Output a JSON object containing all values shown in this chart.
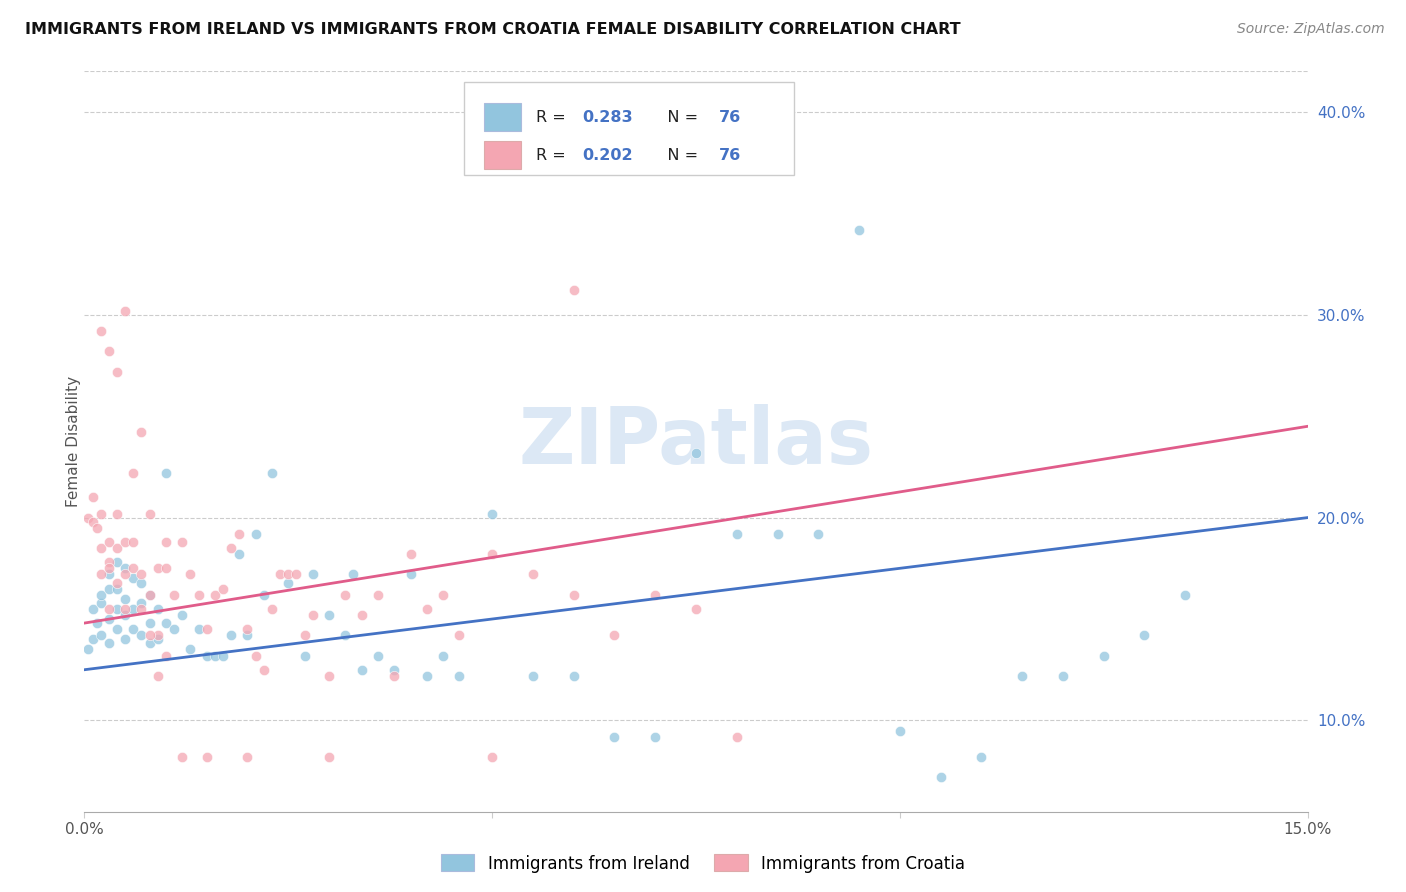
{
  "title": "IMMIGRANTS FROM IRELAND VS IMMIGRANTS FROM CROATIA FEMALE DISABILITY CORRELATION CHART",
  "source": "Source: ZipAtlas.com",
  "ylabel": "Female Disability",
  "xlim": [
    0.0,
    0.15
  ],
  "ylim": [
    0.055,
    0.42
  ],
  "y_ticks_right": [
    0.1,
    0.2,
    0.3,
    0.4
  ],
  "y_tick_labels_right": [
    "10.0%",
    "20.0%",
    "30.0%",
    "40.0%"
  ],
  "ireland_color": "#92c5de",
  "croatia_color": "#f4a6b2",
  "ireland_line_color": "#4472c4",
  "croatia_line_color": "#e05c8a",
  "ireland_R": 0.283,
  "ireland_N": 76,
  "croatia_R": 0.202,
  "croatia_N": 76,
  "legend_ireland_label": "Immigrants from Ireland",
  "legend_croatia_label": "Immigrants from Croatia",
  "ireland_scatter_x": [
    0.0005,
    0.001,
    0.001,
    0.0015,
    0.002,
    0.002,
    0.002,
    0.003,
    0.003,
    0.003,
    0.003,
    0.004,
    0.004,
    0.004,
    0.004,
    0.005,
    0.005,
    0.005,
    0.005,
    0.006,
    0.006,
    0.006,
    0.007,
    0.007,
    0.007,
    0.008,
    0.008,
    0.008,
    0.009,
    0.009,
    0.01,
    0.01,
    0.011,
    0.012,
    0.013,
    0.014,
    0.015,
    0.016,
    0.017,
    0.018,
    0.019,
    0.02,
    0.021,
    0.022,
    0.023,
    0.025,
    0.027,
    0.028,
    0.03,
    0.032,
    0.033,
    0.034,
    0.036,
    0.038,
    0.04,
    0.042,
    0.044,
    0.046,
    0.05,
    0.055,
    0.06,
    0.065,
    0.07,
    0.075,
    0.08,
    0.085,
    0.09,
    0.095,
    0.1,
    0.105,
    0.11,
    0.115,
    0.12,
    0.125,
    0.13,
    0.135
  ],
  "ireland_scatter_y": [
    0.135,
    0.14,
    0.155,
    0.148,
    0.142,
    0.158,
    0.162,
    0.138,
    0.15,
    0.165,
    0.172,
    0.145,
    0.155,
    0.165,
    0.178,
    0.14,
    0.152,
    0.16,
    0.175,
    0.145,
    0.155,
    0.17,
    0.142,
    0.158,
    0.168,
    0.138,
    0.148,
    0.162,
    0.14,
    0.155,
    0.148,
    0.222,
    0.145,
    0.152,
    0.135,
    0.145,
    0.132,
    0.132,
    0.132,
    0.142,
    0.182,
    0.142,
    0.192,
    0.162,
    0.222,
    0.168,
    0.132,
    0.172,
    0.152,
    0.142,
    0.172,
    0.125,
    0.132,
    0.125,
    0.172,
    0.122,
    0.132,
    0.122,
    0.202,
    0.122,
    0.122,
    0.092,
    0.092,
    0.232,
    0.192,
    0.192,
    0.192,
    0.342,
    0.095,
    0.072,
    0.082,
    0.122,
    0.122,
    0.132,
    0.142,
    0.162
  ],
  "croatia_scatter_x": [
    0.0005,
    0.001,
    0.001,
    0.0015,
    0.002,
    0.002,
    0.002,
    0.003,
    0.003,
    0.003,
    0.003,
    0.004,
    0.004,
    0.004,
    0.005,
    0.005,
    0.005,
    0.006,
    0.006,
    0.007,
    0.007,
    0.008,
    0.008,
    0.009,
    0.009,
    0.01,
    0.01,
    0.011,
    0.012,
    0.013,
    0.014,
    0.015,
    0.016,
    0.017,
    0.018,
    0.019,
    0.02,
    0.021,
    0.022,
    0.023,
    0.024,
    0.025,
    0.026,
    0.027,
    0.028,
    0.03,
    0.032,
    0.034,
    0.036,
    0.038,
    0.04,
    0.042,
    0.044,
    0.046,
    0.05,
    0.055,
    0.06,
    0.065,
    0.07,
    0.075,
    0.08,
    0.002,
    0.003,
    0.004,
    0.005,
    0.006,
    0.007,
    0.008,
    0.009,
    0.01,
    0.012,
    0.015,
    0.02,
    0.03,
    0.05,
    0.06
  ],
  "croatia_scatter_y": [
    0.2,
    0.198,
    0.21,
    0.195,
    0.202,
    0.185,
    0.172,
    0.178,
    0.188,
    0.155,
    0.175,
    0.168,
    0.185,
    0.202,
    0.172,
    0.188,
    0.155,
    0.175,
    0.188,
    0.172,
    0.155,
    0.162,
    0.202,
    0.175,
    0.142,
    0.175,
    0.188,
    0.162,
    0.188,
    0.172,
    0.162,
    0.145,
    0.162,
    0.165,
    0.185,
    0.192,
    0.145,
    0.132,
    0.125,
    0.155,
    0.172,
    0.172,
    0.172,
    0.142,
    0.152,
    0.122,
    0.162,
    0.152,
    0.162,
    0.122,
    0.182,
    0.155,
    0.162,
    0.142,
    0.182,
    0.172,
    0.162,
    0.142,
    0.162,
    0.155,
    0.092,
    0.292,
    0.282,
    0.272,
    0.302,
    0.222,
    0.242,
    0.142,
    0.122,
    0.132,
    0.082,
    0.082,
    0.082,
    0.082,
    0.082,
    0.312
  ]
}
